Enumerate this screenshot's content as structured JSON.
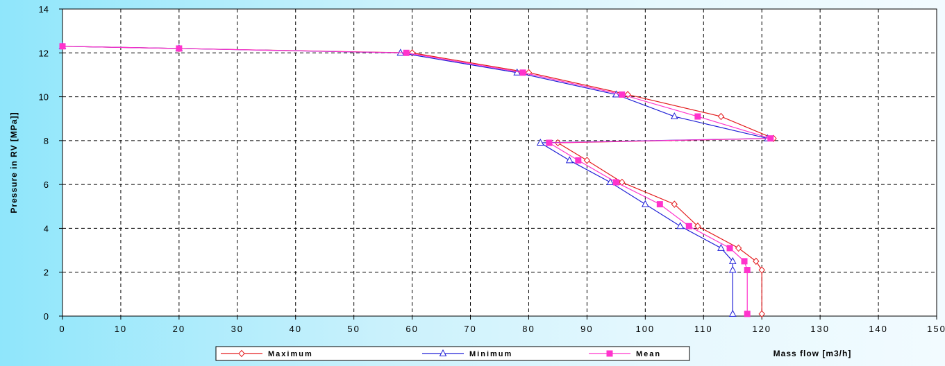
{
  "colors": {
    "maximum": "#e31a1c",
    "minimum": "#1f1fd6",
    "mean": "#ff33cc",
    "grid": "#000000",
    "plot_background": "#ffffff"
  },
  "chart_data": {
    "type": "line",
    "title": "",
    "xlabel": "Mass flow   [m3/h]",
    "ylabel": "Pressure in RV [MPa]]",
    "xlim": [
      0,
      150
    ],
    "ylim": [
      0,
      14
    ],
    "x_ticks": [
      "0",
      "10",
      "20",
      "30",
      "40",
      "50",
      "60",
      "70",
      "80",
      "90",
      "100",
      "110",
      "120",
      "130",
      "140",
      "150"
    ],
    "y_ticks": [
      "0",
      "2",
      "4",
      "6",
      "8",
      "10",
      "12",
      "14"
    ],
    "grid": true,
    "legend_position": "bottom",
    "series": [
      {
        "name": "Maximum",
        "marker": "diamond",
        "points": [
          [
            0,
            12.3
          ],
          [
            20,
            12.2
          ],
          [
            60,
            12.0
          ],
          [
            80,
            11.1
          ],
          [
            97,
            10.1
          ],
          [
            113,
            9.1
          ],
          [
            122,
            8.1
          ],
          [
            85,
            7.9
          ],
          [
            90,
            7.1
          ],
          [
            96,
            6.1
          ],
          [
            105,
            5.1
          ],
          [
            109,
            4.1
          ],
          [
            116,
            3.1
          ],
          [
            119,
            2.5
          ],
          [
            120,
            2.1
          ],
          [
            120,
            0.1
          ]
        ]
      },
      {
        "name": "Minimum",
        "marker": "triangle",
        "points": [
          [
            0,
            12.3
          ],
          [
            20,
            12.2
          ],
          [
            58,
            12.0
          ],
          [
            78,
            11.1
          ],
          [
            95,
            10.1
          ],
          [
            105,
            9.1
          ],
          [
            121,
            8.1
          ],
          [
            82,
            7.9
          ],
          [
            87,
            7.1
          ],
          [
            94,
            6.1
          ],
          [
            100,
            5.1
          ],
          [
            106,
            4.1
          ],
          [
            113,
            3.1
          ],
          [
            115,
            2.5
          ],
          [
            115,
            2.1
          ],
          [
            115,
            0.1
          ]
        ]
      },
      {
        "name": "Mean",
        "marker": "square",
        "points": [
          [
            0,
            12.3
          ],
          [
            20,
            12.2
          ],
          [
            59,
            12.0
          ],
          [
            79,
            11.1
          ],
          [
            96,
            10.1
          ],
          [
            109,
            9.1
          ],
          [
            121.5,
            8.1
          ],
          [
            83.5,
            7.9
          ],
          [
            88.5,
            7.1
          ],
          [
            95,
            6.1
          ],
          [
            102.5,
            5.1
          ],
          [
            107.5,
            4.1
          ],
          [
            114.5,
            3.1
          ],
          [
            117,
            2.5
          ],
          [
            117.5,
            2.1
          ],
          [
            117.5,
            0.1
          ]
        ]
      }
    ]
  }
}
